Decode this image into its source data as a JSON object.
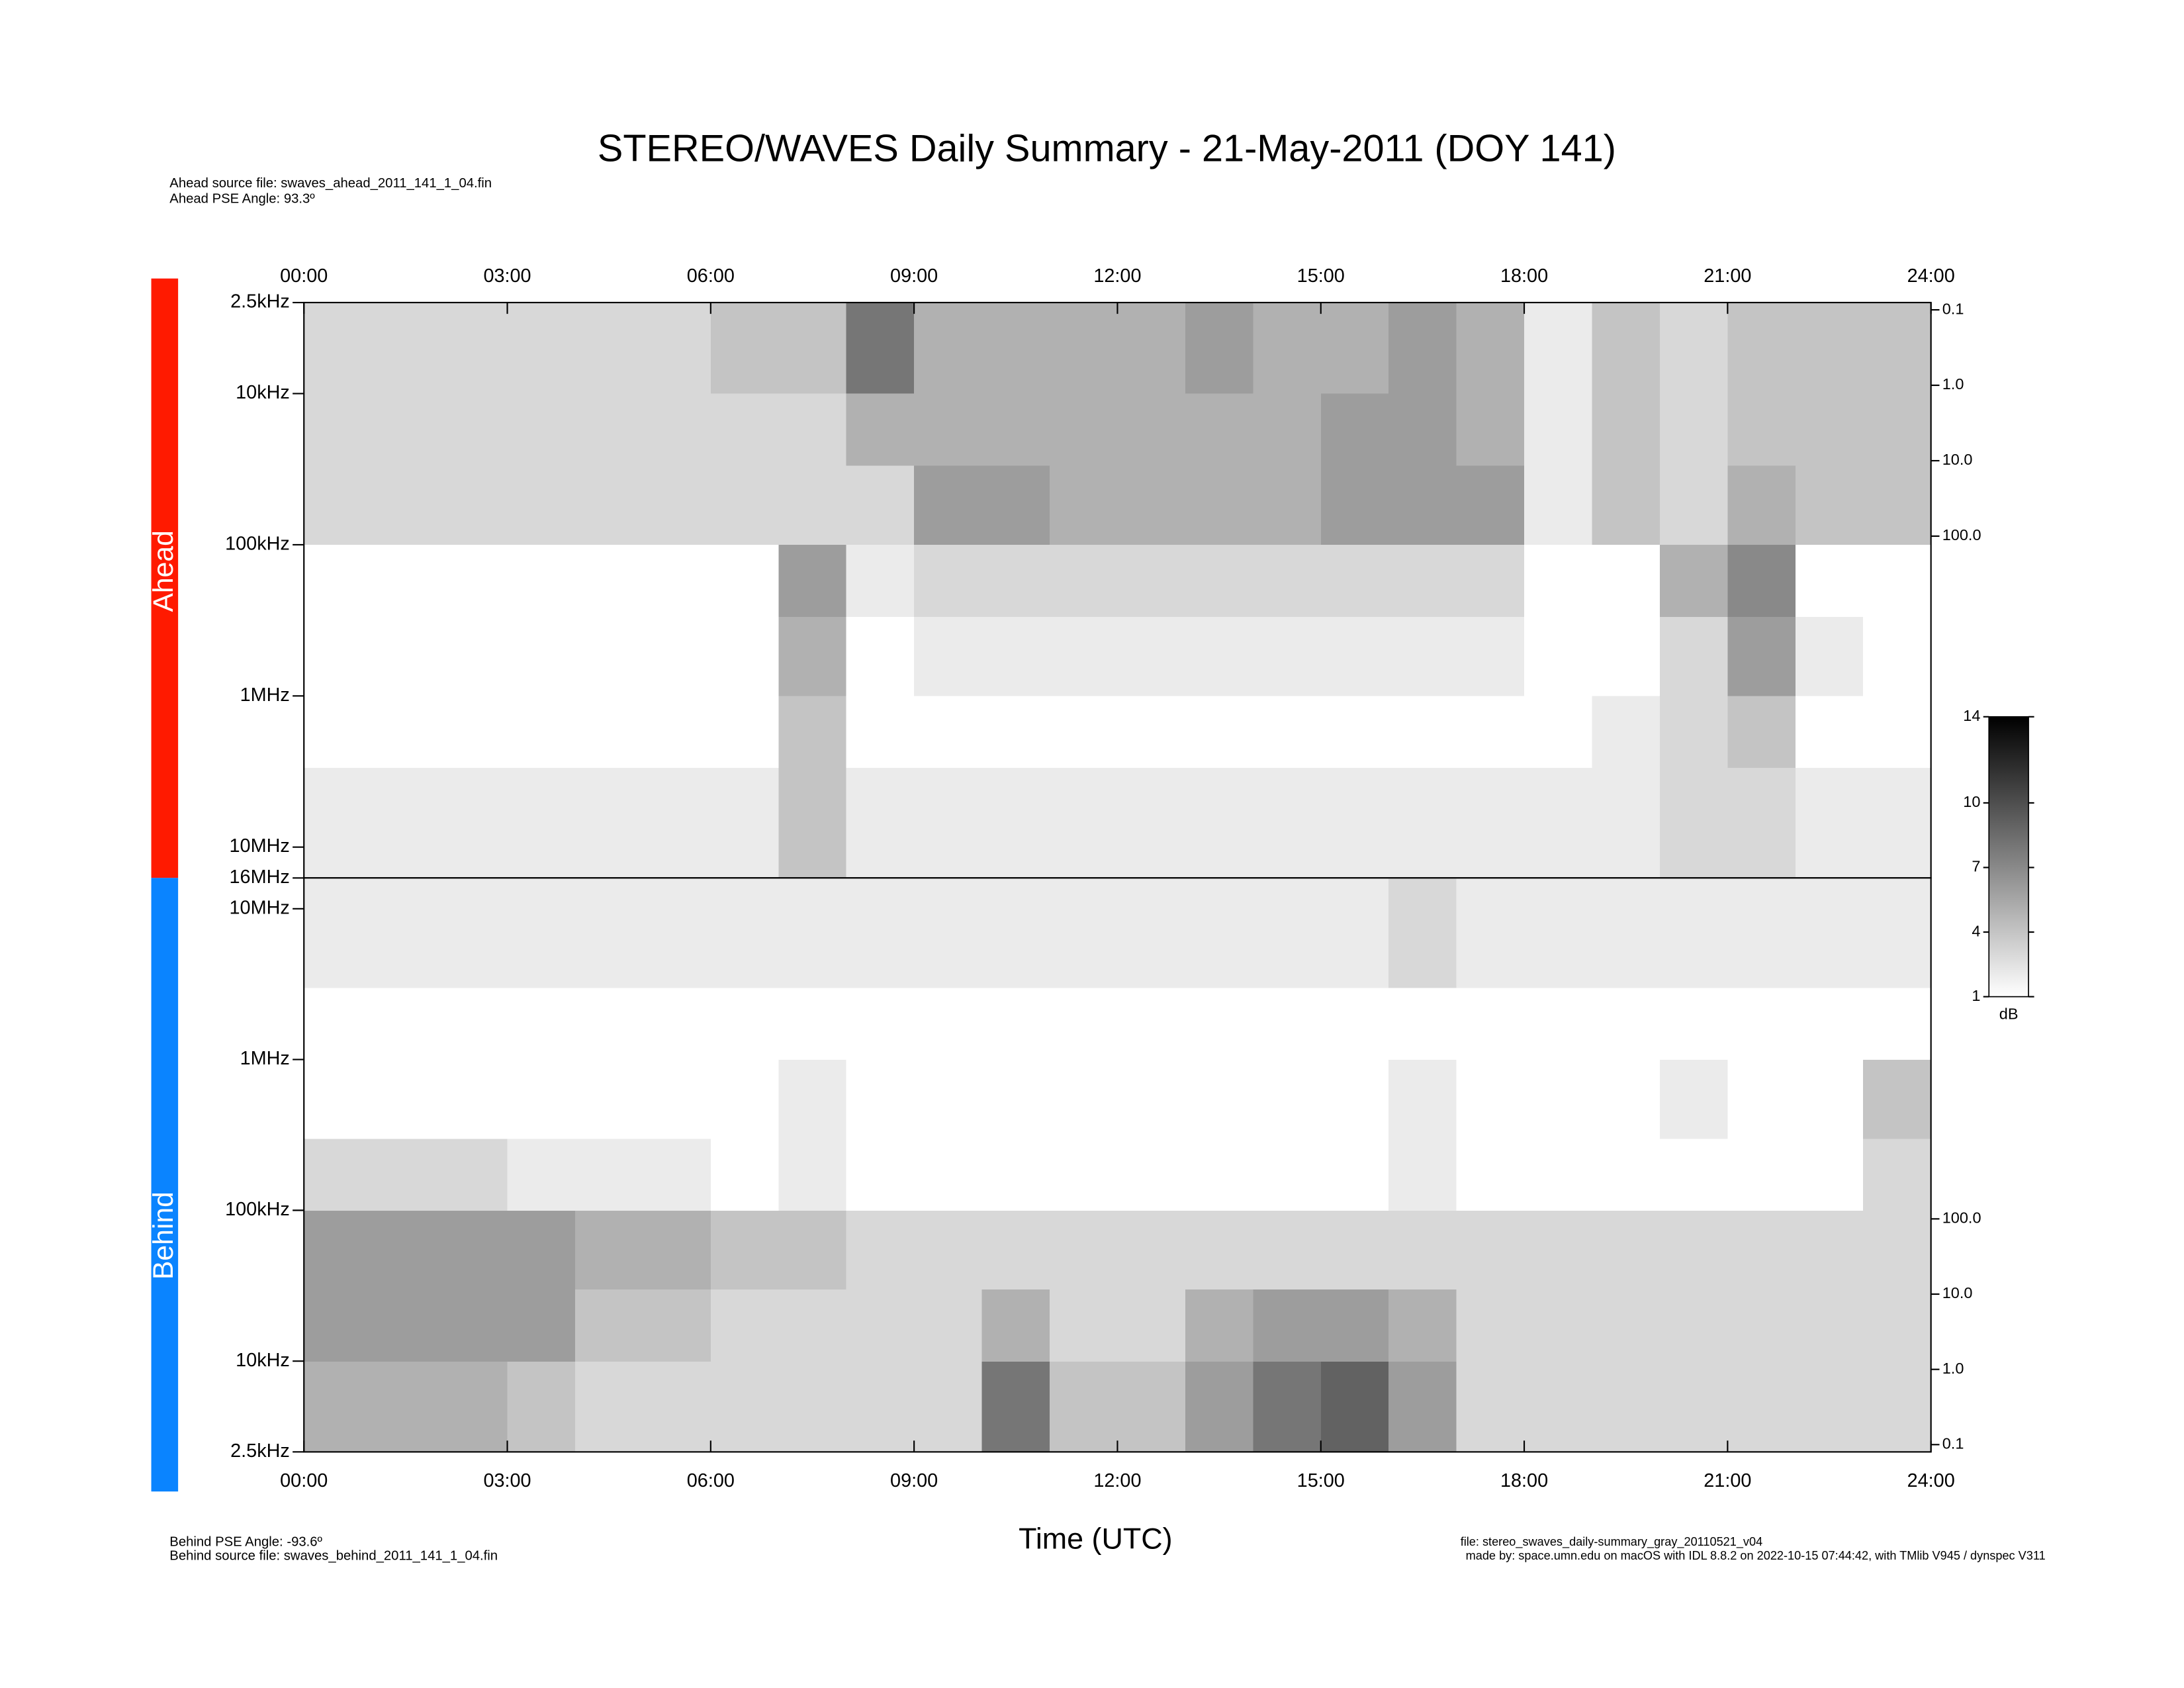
{
  "chart_data": [
    {
      "type": "heatmap",
      "title": "STEREO/WAVES Daily Summary - 21-May-2011 (DOY 141)",
      "panel_label": "Ahead",
      "panel_color": "#ff1a00",
      "source_text": "Ahead source file: swaves_ahead_2011_141_1_04.fin",
      "pse_text": "Ahead PSE Angle:   93.3º",
      "xlim": [
        0,
        24
      ],
      "xticks": [
        {
          "value": 0,
          "label": "00:00"
        },
        {
          "value": 3,
          "label": "03:00"
        },
        {
          "value": 6,
          "label": "06:00"
        },
        {
          "value": 9,
          "label": "09:00"
        },
        {
          "value": 12,
          "label": "12:00"
        },
        {
          "value": 15,
          "label": "15:00"
        },
        {
          "value": 18,
          "label": "18:00"
        },
        {
          "value": 21,
          "label": "21:00"
        },
        {
          "value": 24,
          "label": "24:00"
        }
      ],
      "ylim": [
        2.5,
        16000
      ],
      "y_log": true,
      "y_reverse": true,
      "yticks": [
        {
          "value": 2.5,
          "label": "2.5kHz"
        },
        {
          "value": 10,
          "label": "10kHz"
        },
        {
          "value": 100,
          "label": "100kHz"
        },
        {
          "value": 1000,
          "label": "1MHz"
        },
        {
          "value": 10000,
          "label": "10MHz"
        },
        {
          "value": 16000,
          "label": "16MHz"
        }
      ],
      "y2lim": [
        0.08,
        3400000
      ],
      "y2ticks": [
        0.1,
        {
          "value": 1,
          "label": "1.0"
        },
        {
          "value": 10,
          "label": "10.0"
        },
        {
          "value": 100,
          "label": "100.0"
        }
      ],
      "x_bins": [
        0,
        1,
        2,
        3,
        4,
        5,
        6,
        7,
        8,
        9,
        10,
        11,
        12,
        13,
        14,
        15,
        16,
        17,
        18,
        19,
        20,
        21,
        22,
        23,
        24
      ],
      "freq_bins": [
        2.5,
        10,
        30,
        100,
        300,
        1000,
        3000,
        16000
      ],
      "values": [
        [
          3,
          3,
          3,
          3,
          3,
          3,
          4,
          4,
          8,
          5,
          5,
          5,
          5,
          6,
          5,
          5,
          6,
          5,
          2,
          4,
          3,
          4,
          4,
          4
        ],
        [
          3,
          3,
          3,
          3,
          3,
          3,
          3,
          3,
          5,
          5,
          5,
          5,
          5,
          5,
          5,
          6,
          6,
          5,
          2,
          4,
          3,
          4,
          4,
          4
        ],
        [
          3,
          3,
          3,
          3,
          3,
          3,
          3,
          3,
          3,
          6,
          6,
          5,
          5,
          5,
          5,
          6,
          6,
          6,
          2,
          4,
          3,
          5,
          4,
          4
        ],
        [
          1,
          1,
          1,
          1,
          1,
          1,
          1,
          6,
          2,
          3,
          3,
          3,
          3,
          3,
          3,
          3,
          3,
          3,
          1,
          1,
          5,
          7,
          1,
          1
        ],
        [
          1,
          1,
          1,
          1,
          1,
          1,
          1,
          5,
          1,
          2,
          2,
          2,
          2,
          2,
          2,
          2,
          2,
          2,
          1,
          1,
          3,
          6,
          2,
          1
        ],
        [
          1,
          1,
          1,
          1,
          1,
          1,
          1,
          4,
          1,
          1,
          1,
          1,
          1,
          1,
          1,
          1,
          1,
          1,
          1,
          2,
          3,
          4,
          1,
          1
        ],
        [
          2,
          2,
          2,
          2,
          2,
          2,
          2,
          4,
          2,
          2,
          2,
          2,
          2,
          2,
          2,
          2,
          2,
          2,
          2,
          2,
          3,
          3,
          2,
          2
        ]
      ],
      "colorbar": {
        "clim": [
          1,
          14
        ],
        "ticks": [
          1,
          4,
          7,
          10,
          14
        ],
        "label": "dB"
      }
    },
    {
      "type": "heatmap",
      "panel_label": "Behind",
      "panel_color": "#0a84ff",
      "source_text": "Behind source file: swaves_behind_2011_141_1_04.fin",
      "pse_text": "Behind PSE Angle:  -93.6º",
      "xlabel": "Time (UTC)",
      "file_text": "file: stereo_swaves_daily-summary_gray_20110521_v04",
      "made_by_text": "made by: space.umn.edu on macOS with IDL 8.8.2 on 2022-10-15 07:44:42, with TMlib V945 / dynspec V311",
      "xlim": [
        0,
        24
      ],
      "xticks": [
        {
          "value": 0,
          "label": "00:00"
        },
        {
          "value": 3,
          "label": "03:00"
        },
        {
          "value": 6,
          "label": "06:00"
        },
        {
          "value": 9,
          "label": "09:00"
        },
        {
          "value": 12,
          "label": "12:00"
        },
        {
          "value": 15,
          "label": "15:00"
        },
        {
          "value": 18,
          "label": "18:00"
        },
        {
          "value": 21,
          "label": "21:00"
        },
        {
          "value": 24,
          "label": "24:00"
        }
      ],
      "ylim": [
        2.5,
        16000
      ],
      "y_log": true,
      "y_reverse": false,
      "yticks": [
        {
          "value": 2.5,
          "label": "2.5kHz"
        },
        {
          "value": 10,
          "label": "10kHz"
        },
        {
          "value": 100,
          "label": "100kHz"
        },
        {
          "value": 1000,
          "label": "1MHz"
        },
        {
          "value": 10000,
          "label": "10MHz"
        }
      ],
      "y2lim": [
        0.08,
        3400000
      ],
      "y2ticks": [
        0.1,
        {
          "value": 1,
          "label": "1.0"
        },
        {
          "value": 10,
          "label": "10.0"
        },
        {
          "value": 100,
          "label": "100.0"
        }
      ],
      "x_bins": [
        0,
        1,
        2,
        3,
        4,
        5,
        6,
        7,
        8,
        9,
        10,
        11,
        12,
        13,
        14,
        15,
        16,
        17,
        18,
        19,
        20,
        21,
        22,
        23,
        24
      ],
      "freq_bins": [
        2.5,
        10,
        30,
        100,
        300,
        1000,
        3000,
        16000
      ],
      "values": [
        [
          5,
          5,
          5,
          4,
          3,
          3,
          3,
          3,
          3,
          3,
          8,
          4,
          4,
          6,
          8,
          9,
          6,
          3,
          3,
          3,
          3,
          3,
          3,
          3
        ],
        [
          6,
          6,
          6,
          6,
          4,
          4,
          3,
          3,
          3,
          3,
          5,
          3,
          3,
          5,
          6,
          6,
          5,
          3,
          3,
          3,
          3,
          3,
          3,
          3
        ],
        [
          6,
          6,
          6,
          6,
          5,
          5,
          4,
          4,
          3,
          3,
          3,
          3,
          3,
          3,
          3,
          3,
          3,
          3,
          3,
          3,
          3,
          3,
          3,
          3
        ],
        [
          3,
          3,
          3,
          2,
          2,
          2,
          1,
          2,
          1,
          1,
          1,
          1,
          1,
          1,
          1,
          1,
          2,
          1,
          1,
          1,
          1,
          1,
          1,
          3
        ],
        [
          1,
          1,
          1,
          1,
          1,
          1,
          1,
          2,
          1,
          1,
          1,
          1,
          1,
          1,
          1,
          1,
          2,
          1,
          1,
          1,
          2,
          1,
          1,
          4
        ],
        [
          1,
          1,
          1,
          1,
          1,
          1,
          1,
          1,
          1,
          1,
          1,
          1,
          1,
          1,
          1,
          1,
          1,
          1,
          1,
          1,
          1,
          1,
          1,
          1
        ],
        [
          2,
          2,
          2,
          2,
          2,
          2,
          2,
          2,
          2,
          2,
          2,
          2,
          2,
          2,
          2,
          2,
          3,
          2,
          2,
          2,
          2,
          2,
          2,
          2
        ]
      ]
    }
  ]
}
